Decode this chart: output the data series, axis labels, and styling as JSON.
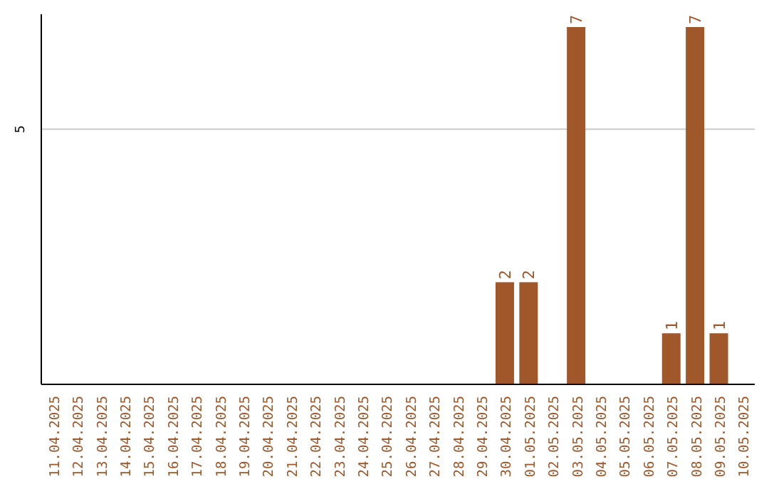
{
  "chart_data": {
    "type": "bar",
    "categories": [
      "11.04.2025",
      "12.04.2025",
      "13.04.2025",
      "14.04.2025",
      "15.04.2025",
      "16.04.2025",
      "17.04.2025",
      "18.04.2025",
      "19.04.2025",
      "20.04.2025",
      "21.04.2025",
      "22.04.2025",
      "23.04.2025",
      "24.04.2025",
      "25.04.2025",
      "26.04.2025",
      "27.04.2025",
      "28.04.2025",
      "29.04.2025",
      "30.04.2025",
      "01.05.2025",
      "02.05.2025",
      "03.05.2025",
      "04.05.2025",
      "05.05.2025",
      "06.05.2025",
      "07.05.2025",
      "08.05.2025",
      "09.05.2025",
      "10.05.2025"
    ],
    "values": [
      null,
      null,
      null,
      null,
      null,
      null,
      null,
      null,
      null,
      null,
      null,
      null,
      null,
      null,
      null,
      null,
      null,
      null,
      null,
      2,
      2,
      null,
      7,
      null,
      null,
      null,
      1,
      7,
      1,
      null
    ],
    "data_labels": true,
    "color": "#a0572a",
    "ylim": [
      0,
      7.25
    ],
    "yticks": [
      5
    ],
    "grid": "y"
  }
}
